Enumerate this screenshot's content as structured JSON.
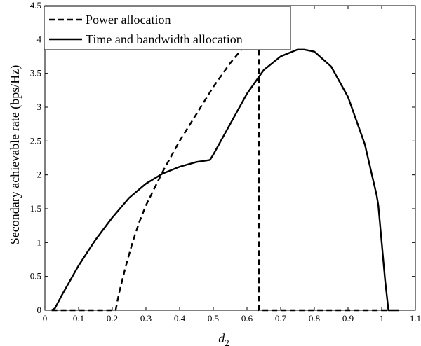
{
  "chart_data": {
    "type": "line",
    "xlabel": "d",
    "xlabel_sub": "2",
    "ylabel": "Secondary achievable rate (bps/Hz)",
    "xlim": [
      0,
      1.1
    ],
    "ylim": [
      0,
      4.5
    ],
    "xticks": [
      "0",
      "0.1",
      "0.2",
      "0.3",
      "0.4",
      "0.5",
      "0.6",
      "0.7",
      "0.8",
      "0.9",
      "1",
      "1.1"
    ],
    "yticks": [
      "0",
      "0.5",
      "1",
      "1.5",
      "2",
      "2.5",
      "3",
      "3.5",
      "4",
      "4.5"
    ],
    "grid": false,
    "legend_position": "top-left",
    "series": [
      {
        "name": "Power allocation",
        "style": "dashed",
        "color": "#000000",
        "x": [
          0.02,
          0.21,
          0.22,
          0.24,
          0.26,
          0.28,
          0.3,
          0.35,
          0.4,
          0.45,
          0.5,
          0.55,
          0.6,
          0.625,
          0.635,
          0.635,
          0.7,
          0.8,
          0.9,
          1.0,
          1.02
        ],
        "y": [
          0,
          0,
          0.25,
          0.65,
          1.0,
          1.3,
          1.55,
          2.05,
          2.5,
          2.9,
          3.3,
          3.65,
          3.95,
          4.12,
          4.2,
          0,
          0,
          0,
          0,
          0,
          0
        ]
      },
      {
        "name": "Time and bandwidth allocation",
        "style": "solid",
        "color": "#000000",
        "x": [
          0.02,
          0.03,
          0.05,
          0.1,
          0.15,
          0.2,
          0.25,
          0.3,
          0.35,
          0.4,
          0.45,
          0.49,
          0.5,
          0.55,
          0.6,
          0.65,
          0.7,
          0.75,
          0.77,
          0.8,
          0.85,
          0.9,
          0.95,
          0.985,
          0.99,
          1.0,
          1.01,
          1.02,
          1.05
        ],
        "y": [
          0,
          0.03,
          0.22,
          0.66,
          1.04,
          1.37,
          1.66,
          1.87,
          2.02,
          2.12,
          2.19,
          2.22,
          2.3,
          2.75,
          3.2,
          3.55,
          3.75,
          3.85,
          3.85,
          3.82,
          3.6,
          3.15,
          2.45,
          1.7,
          1.55,
          1.0,
          0.45,
          0,
          0
        ]
      }
    ]
  }
}
